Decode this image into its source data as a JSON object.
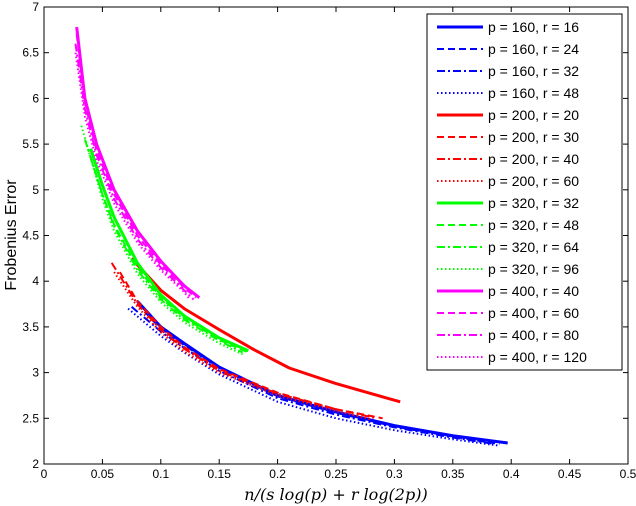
{
  "chart_data": {
    "type": "line",
    "title": "",
    "xlabel": "n/(s log(p) + r log(2p))",
    "ylabel": "Frobenius Error",
    "xlim": [
      0,
      0.5
    ],
    "ylim": [
      2,
      7
    ],
    "xticks": [
      "0",
      "0.05",
      "0.1",
      "0.15",
      "0.2",
      "0.25",
      "0.3",
      "0.35",
      "0.4",
      "0.45",
      "0.5"
    ],
    "yticks": [
      "2",
      "2.5",
      "3",
      "3.5",
      "4",
      "4.5",
      "5",
      "5.5",
      "6",
      "6.5",
      "7"
    ],
    "grid": false,
    "legend_position": "top-right",
    "series": [
      {
        "name": "p = 160, r = 16",
        "color": "#0000ff",
        "dash": "solid",
        "width": 3,
        "x": [
          0.08,
          0.1,
          0.12,
          0.15,
          0.2,
          0.25,
          0.3,
          0.35,
          0.397
        ],
        "y": [
          3.78,
          3.5,
          3.32,
          3.06,
          2.75,
          2.57,
          2.42,
          2.31,
          2.23
        ]
      },
      {
        "name": "p = 160, r = 24",
        "color": "#0000ff",
        "dash": "dashed",
        "width": 2,
        "x": [
          0.08,
          0.1,
          0.12,
          0.15,
          0.2,
          0.25,
          0.3,
          0.35,
          0.39
        ],
        "y": [
          3.75,
          3.48,
          3.3,
          3.05,
          2.74,
          2.56,
          2.41,
          2.3,
          2.22
        ]
      },
      {
        "name": "p = 160, r = 32",
        "color": "#0000ff",
        "dash": "dashdot",
        "width": 2,
        "x": [
          0.075,
          0.1,
          0.12,
          0.15,
          0.2,
          0.25,
          0.3,
          0.35,
          0.385
        ],
        "y": [
          3.72,
          3.45,
          3.27,
          3.02,
          2.72,
          2.54,
          2.4,
          2.29,
          2.22
        ]
      },
      {
        "name": "p = 160, r = 48",
        "color": "#0000ff",
        "dash": "dotted",
        "width": 2,
        "x": [
          0.072,
          0.1,
          0.12,
          0.15,
          0.2,
          0.25,
          0.3,
          0.35,
          0.39
        ],
        "y": [
          3.7,
          3.4,
          3.22,
          2.98,
          2.68,
          2.5,
          2.37,
          2.27,
          2.2
        ]
      },
      {
        "name": "p = 200, r = 20",
        "color": "#ff0000",
        "dash": "solid",
        "width": 3,
        "x": [
          0.075,
          0.1,
          0.12,
          0.15,
          0.18,
          0.21,
          0.25,
          0.28,
          0.305
        ],
        "y": [
          4.25,
          3.9,
          3.7,
          3.47,
          3.25,
          3.05,
          2.88,
          2.77,
          2.68
        ]
      },
      {
        "name": "p = 200, r = 30",
        "color": "#ff0000",
        "dash": "dashed",
        "width": 2,
        "x": [
          0.065,
          0.08,
          0.1,
          0.12,
          0.15,
          0.2,
          0.25,
          0.29
        ],
        "y": [
          4.1,
          3.78,
          3.5,
          3.28,
          3.04,
          2.78,
          2.6,
          2.5
        ]
      },
      {
        "name": "p = 200, r = 40",
        "color": "#ff0000",
        "dash": "dashdot",
        "width": 2,
        "x": [
          0.058,
          0.08,
          0.1,
          0.12,
          0.15,
          0.2,
          0.25,
          0.285
        ],
        "y": [
          4.2,
          3.75,
          3.47,
          3.26,
          3.02,
          2.77,
          2.6,
          2.5
        ]
      },
      {
        "name": "p = 200, r = 60",
        "color": "#ff0000",
        "dash": "dotted",
        "width": 2,
        "x": [
          0.06,
          0.08,
          0.1,
          0.12,
          0.15,
          0.2,
          0.25,
          0.28
        ],
        "y": [
          4.1,
          3.72,
          3.44,
          3.23,
          3.0,
          2.75,
          2.58,
          2.49
        ]
      },
      {
        "name": "p = 320, r = 32",
        "color": "#00ff00",
        "dash": "solid",
        "width": 3,
        "x": [
          0.04,
          0.05,
          0.06,
          0.08,
          0.1,
          0.12,
          0.15,
          0.175
        ],
        "y": [
          5.45,
          5.05,
          4.7,
          4.2,
          3.85,
          3.62,
          3.38,
          3.24
        ]
      },
      {
        "name": "p = 320, r = 48",
        "color": "#00ff00",
        "dash": "dashed",
        "width": 2,
        "x": [
          0.04,
          0.05,
          0.06,
          0.08,
          0.1,
          0.12,
          0.15,
          0.175
        ],
        "y": [
          5.35,
          4.95,
          4.62,
          4.15,
          3.82,
          3.6,
          3.36,
          3.22
        ]
      },
      {
        "name": "p = 320, r = 64",
        "color": "#00ff00",
        "dash": "dashdot",
        "width": 2,
        "x": [
          0.035,
          0.05,
          0.06,
          0.08,
          0.1,
          0.12,
          0.15,
          0.17
        ],
        "y": [
          5.55,
          4.95,
          4.6,
          4.12,
          3.8,
          3.58,
          3.35,
          3.22
        ]
      },
      {
        "name": "p = 320, r = 96",
        "color": "#00ff00",
        "dash": "dotted",
        "width": 2,
        "x": [
          0.032,
          0.05,
          0.06,
          0.08,
          0.1,
          0.12,
          0.15,
          0.17
        ],
        "y": [
          5.7,
          4.9,
          4.55,
          4.08,
          3.77,
          3.55,
          3.32,
          3.2
        ]
      },
      {
        "name": "p = 400, r = 40",
        "color": "#ff00ff",
        "dash": "solid",
        "width": 3,
        "x": [
          0.028,
          0.035,
          0.045,
          0.06,
          0.08,
          0.1,
          0.12,
          0.133
        ],
        "y": [
          6.78,
          6.0,
          5.5,
          5.0,
          4.55,
          4.22,
          3.95,
          3.82
        ]
      },
      {
        "name": "p = 400, r = 60",
        "color": "#ff00ff",
        "dash": "dashed",
        "width": 2,
        "x": [
          0.028,
          0.035,
          0.045,
          0.06,
          0.08,
          0.1,
          0.12,
          0.13
        ],
        "y": [
          6.7,
          5.95,
          5.43,
          4.95,
          4.5,
          4.18,
          3.93,
          3.82
        ]
      },
      {
        "name": "p = 400, r = 80",
        "color": "#ff00ff",
        "dash": "dashdot",
        "width": 2,
        "x": [
          0.027,
          0.035,
          0.045,
          0.06,
          0.08,
          0.1,
          0.12,
          0.128
        ],
        "y": [
          6.6,
          5.88,
          5.38,
          4.9,
          4.46,
          4.15,
          3.9,
          3.8
        ]
      },
      {
        "name": "p = 400, r = 120",
        "color": "#ff00ff",
        "dash": "dotted",
        "width": 2,
        "x": [
          0.027,
          0.035,
          0.045,
          0.06,
          0.08,
          0.1,
          0.12,
          0.125
        ],
        "y": [
          6.5,
          5.8,
          5.32,
          4.85,
          4.42,
          4.12,
          3.88,
          3.8
        ]
      }
    ]
  }
}
